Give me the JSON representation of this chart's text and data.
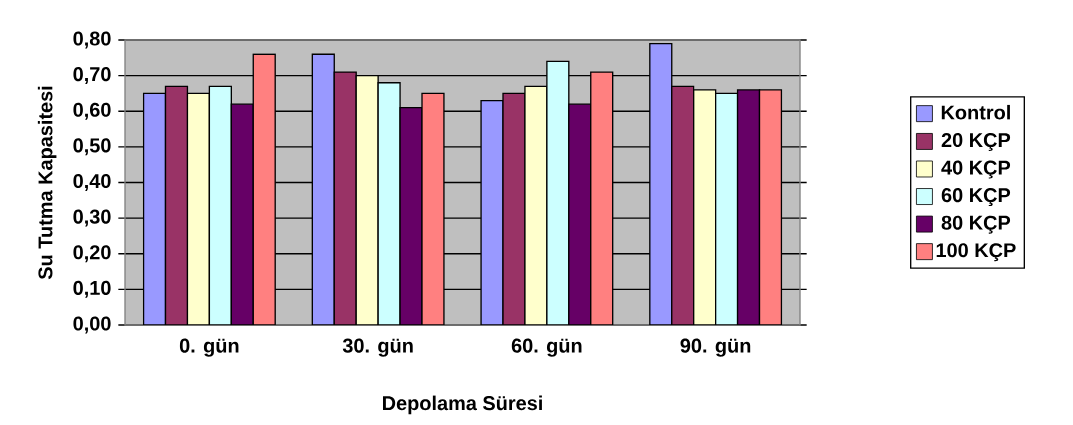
{
  "chart_data": {
    "type": "bar",
    "xlabel": "Depolama Süresi",
    "ylabel": "Su Tutma Kapasitesi",
    "categories": [
      "0. gün",
      "30. gün",
      "60. gün",
      "90. gün"
    ],
    "series": [
      {
        "name": "Kontrol",
        "color": "#9999ff",
        "values": [
          0.65,
          0.76,
          0.63,
          0.79
        ]
      },
      {
        "name": "20 KÇP",
        "color": "#993366",
        "values": [
          0.67,
          0.71,
          0.65,
          0.67
        ]
      },
      {
        "name": "40 KÇP",
        "color": "#ffffcc",
        "values": [
          0.65,
          0.7,
          0.67,
          0.66
        ]
      },
      {
        "name": "60 KÇP",
        "color": "#ccffff",
        "values": [
          0.67,
          0.68,
          0.74,
          0.65
        ]
      },
      {
        "name": "80 KÇP",
        "color": "#660066",
        "values": [
          0.62,
          0.61,
          0.62,
          0.66
        ]
      },
      {
        "name": "100 KÇP",
        "color": "#ff8080",
        "values": [
          0.76,
          0.65,
          0.71,
          0.66
        ]
      }
    ],
    "ylim": [
      0,
      0.8
    ],
    "yticks": [
      {
        "value": 0,
        "label": "0,00"
      },
      {
        "value": 0.1,
        "label": "0,10"
      },
      {
        "value": 0.2,
        "label": "0,20"
      },
      {
        "value": 0.3,
        "label": "0,30"
      },
      {
        "value": 0.4,
        "label": "0,40"
      },
      {
        "value": 0.5,
        "label": "0,50"
      },
      {
        "value": 0.6,
        "label": "0,60"
      },
      {
        "value": 0.7,
        "label": "0,70"
      },
      {
        "value": 0.8,
        "label": "0,80"
      }
    ],
    "grid": "y",
    "legend": "right"
  }
}
